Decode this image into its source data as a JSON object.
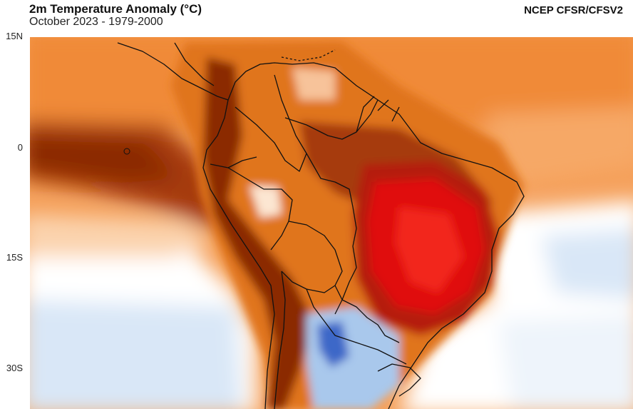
{
  "header": {
    "title": "2m Temperature Anomaly (°C)",
    "subtitle": "October 2023 - 1979-2000",
    "source": "NCEP CFSR/CFSV2"
  },
  "axis": {
    "lat_labels": [
      "15N",
      "0",
      "15S",
      "30S"
    ]
  },
  "map": {
    "region": "South America",
    "variable": "2m temperature anomaly",
    "palette": {
      "strong_warm": "#e0100c",
      "dark_warm": "#8b1f04",
      "warm": "#c8500a",
      "mild_warm": "#f5a05a",
      "neutral": "#ffffff",
      "cool": "#a9c8ec",
      "cold": "#3d68c8",
      "border": "#111111"
    }
  }
}
